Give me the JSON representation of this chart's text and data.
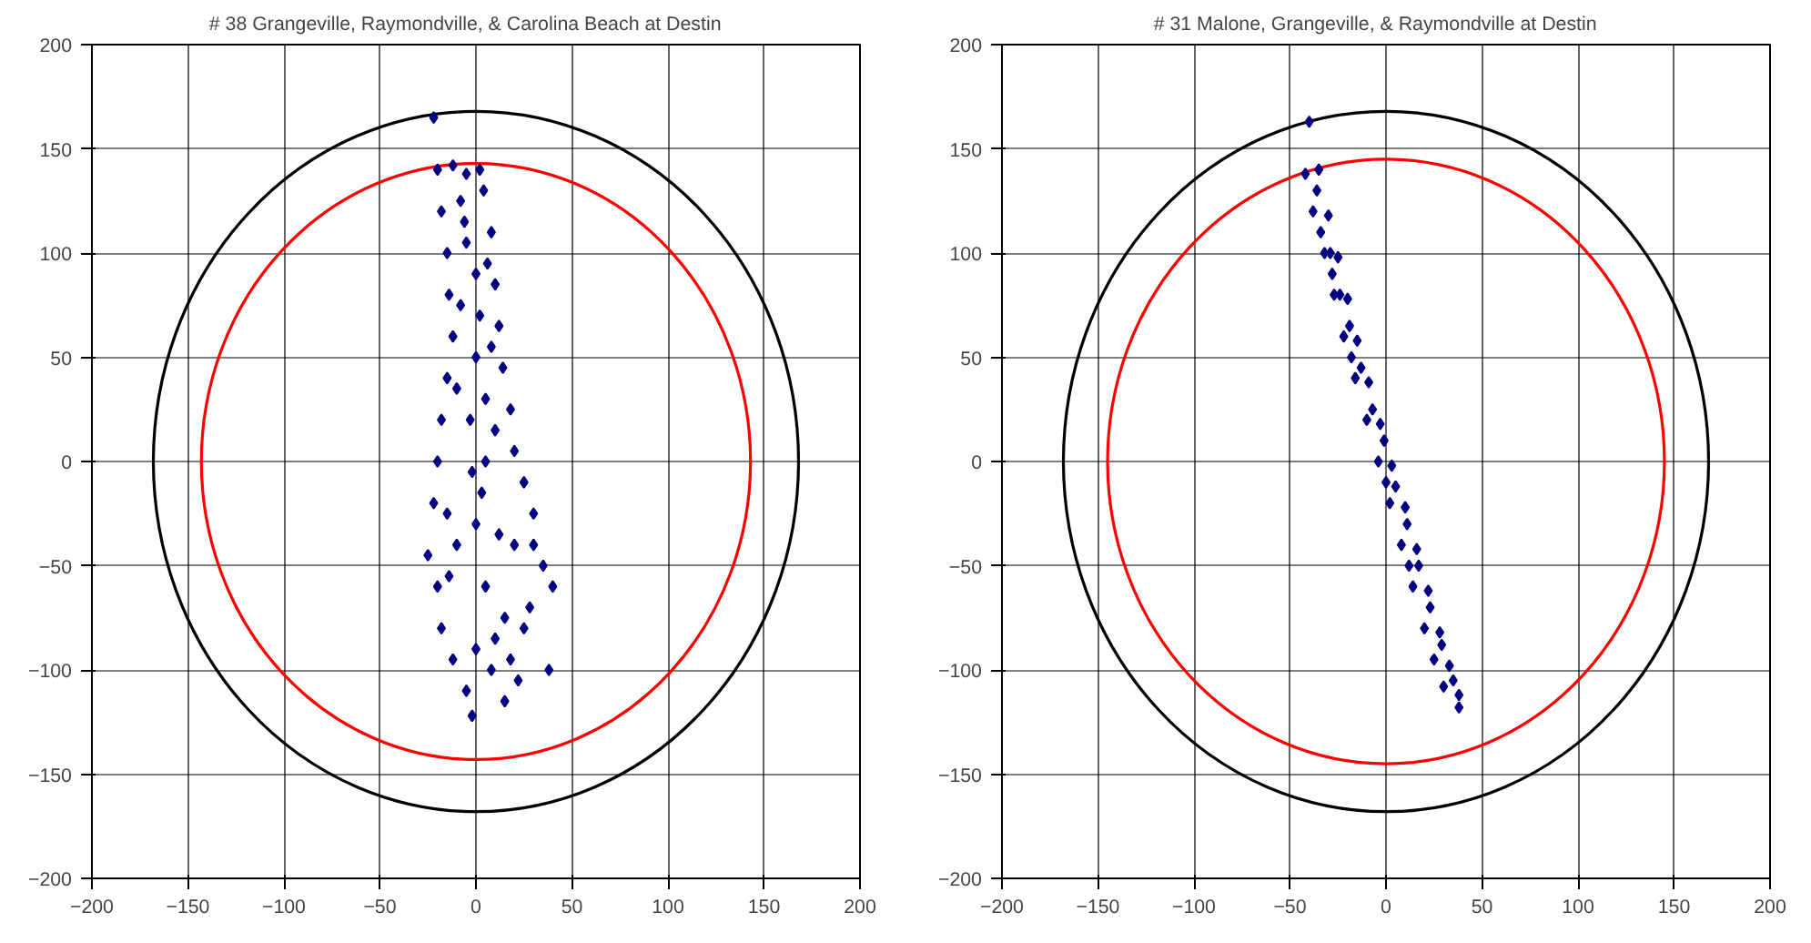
{
  "chart_data": [
    {
      "type": "scatter",
      "title": "# 38     Grangeville, Raymondville, & Carolina Beach at Destin",
      "xlim": [
        -200,
        200
      ],
      "ylim": [
        -200,
        200
      ],
      "xticks": [
        -200,
        -150,
        -100,
        -50,
        0,
        50,
        100,
        150,
        200
      ],
      "yticks": [
        -200,
        -150,
        -100,
        -50,
        0,
        50,
        100,
        150,
        200
      ],
      "grid": true,
      "marker": "diamond",
      "series": [
        {
          "color": "#000080",
          "x": [
            -22,
            -20,
            -12,
            -5,
            2,
            -18,
            -8,
            4,
            -15,
            -5,
            8,
            -14,
            10,
            0,
            -12,
            12,
            2,
            -15,
            14,
            -18,
            18,
            5,
            -20,
            20,
            25,
            -22,
            30,
            -25,
            35,
            40,
            -20,
            28,
            -18,
            10,
            -12,
            38,
            22,
            -5,
            15,
            -2,
            0,
            5,
            0,
            5,
            -10,
            20,
            -3,
            -6,
            6,
            -8,
            8,
            -10,
            10,
            -2,
            3,
            12,
            -14,
            15,
            18,
            25,
            30,
            -15,
            0,
            8
          ],
          "values": [
            165,
            140,
            142,
            138,
            140,
            120,
            125,
            130,
            100,
            105,
            110,
            80,
            85,
            90,
            60,
            65,
            70,
            40,
            45,
            20,
            25,
            30,
            0,
            5,
            -10,
            -20,
            -25,
            -45,
            -50,
            -60,
            -60,
            -70,
            -80,
            -85,
            -95,
            -100,
            -105,
            -110,
            -115,
            -122,
            -30,
            0,
            50,
            -60,
            -40,
            -40,
            20,
            115,
            95,
            75,
            55,
            35,
            15,
            -5,
            -15,
            -35,
            -55,
            -75,
            -95,
            -80,
            -40,
            -25,
            -90,
            -100
          ]
        }
      ]
    },
    {
      "type": "scatter",
      "title": "# 31     Malone, Grangeville, & Raymondville at Destin",
      "xlim": [
        -200,
        200
      ],
      "ylim": [
        -200,
        200
      ],
      "xticks": [
        -200,
        -150,
        -100,
        -50,
        0,
        50,
        100,
        150,
        200
      ],
      "yticks": [
        -200,
        -150,
        -100,
        -50,
        0,
        50,
        100,
        150,
        200
      ],
      "grid": true,
      "marker": "diamond",
      "series": [
        {
          "color": "#000080",
          "x": [
            -40,
            -42,
            -35,
            -38,
            -30,
            -32,
            -25,
            -27,
            -20,
            -22,
            -15,
            -16,
            -9,
            -10,
            -3,
            -4,
            3,
            2,
            10,
            8,
            16,
            14,
            22,
            20,
            28,
            25,
            33,
            30,
            38,
            38,
            -28,
            0,
            12,
            -18,
            -36,
            -34,
            -29,
            -24,
            -19,
            -13,
            -7,
            -1,
            5,
            11,
            17,
            23,
            29,
            35
          ],
          "values": [
            163,
            138,
            140,
            120,
            118,
            100,
            98,
            80,
            78,
            60,
            58,
            40,
            38,
            20,
            18,
            0,
            -2,
            -20,
            -22,
            -40,
            -42,
            -60,
            -62,
            -80,
            -82,
            -95,
            -98,
            -108,
            -112,
            -118,
            90,
            -10,
            -50,
            50,
            130,
            110,
            100,
            80,
            65,
            45,
            25,
            10,
            -12,
            -30,
            -50,
            -70,
            -88,
            -105
          ]
        }
      ]
    }
  ]
}
